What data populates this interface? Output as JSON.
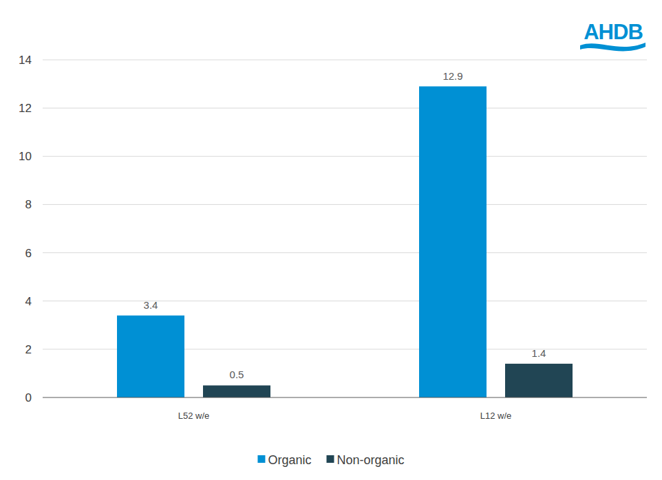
{
  "chart_data": {
    "type": "bar",
    "annotations": [
      "AHDB"
    ],
    "categories": [
      "L52 w/e",
      "L12 w/e"
    ],
    "series": [
      {
        "name": "Organic",
        "color": "#0090d4",
        "values": [
          3.4,
          12.9
        ]
      },
      {
        "name": "Non-organic",
        "color": "#214554",
        "values": [
          0.5,
          1.4
        ]
      }
    ],
    "ylim": [
      0,
      14
    ],
    "yticks": [
      0,
      2,
      4,
      6,
      8,
      10,
      12,
      14
    ],
    "grid": true,
    "data_labels": true,
    "legend": "bottom"
  }
}
